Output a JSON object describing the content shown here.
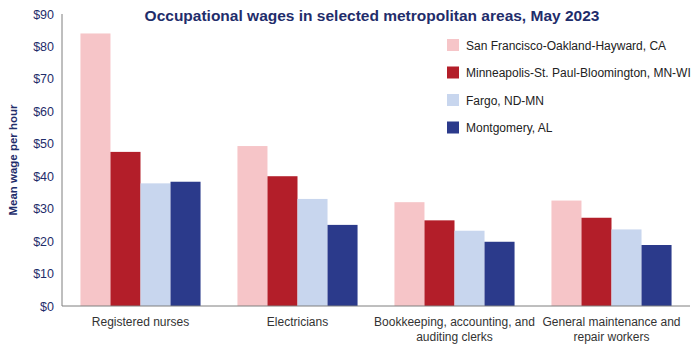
{
  "chart_data": {
    "type": "bar",
    "title": "Occupational wages in selected metropolitan areas, May 2023",
    "y_label": "Mean wage per hour",
    "categories": [
      "Registered nurses",
      "Electricians",
      "Bookkeeping, accounting, and auditing clerks",
      "General maintenance and repair workers"
    ],
    "series": [
      {
        "name": "San Francisco-Oakland-Hayward, CA",
        "color": "#f6c5c8",
        "values": [
          84,
          49.3,
          32,
          32.5
        ]
      },
      {
        "name": "Minneapolis-St. Paul-Bloomington, MN-WI",
        "color": "#b31e29",
        "values": [
          47.5,
          40,
          26.4,
          27.2
        ]
      },
      {
        "name": "Fargo, ND-MN",
        "color": "#c8d6ee",
        "values": [
          37.8,
          33,
          23.2,
          23.6
        ]
      },
      {
        "name": "Montgomery, AL",
        "color": "#2b3a8b",
        "values": [
          38.3,
          25,
          19.8,
          18.8
        ]
      }
    ],
    "ylim": [
      0,
      90
    ],
    "yticks": [
      {
        "value": 0,
        "label": "$0"
      },
      {
        "value": 10,
        "label": "$10"
      },
      {
        "value": 20,
        "label": "$20"
      },
      {
        "value": 30,
        "label": "$30"
      },
      {
        "value": 40,
        "label": "$40"
      },
      {
        "value": 50,
        "label": "$50"
      },
      {
        "value": 60,
        "label": "$60"
      },
      {
        "value": 70,
        "label": "$70"
      },
      {
        "value": 80,
        "label": "$80"
      },
      {
        "value": 90,
        "label": "$90"
      }
    ],
    "grid": false,
    "legend": "top-right"
  }
}
